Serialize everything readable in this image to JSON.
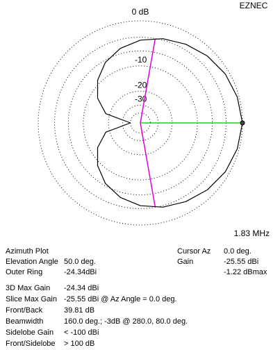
{
  "chart_data": {
    "type": "polar",
    "program": "EZNEC",
    "frequency": "1.83 MHz",
    "scale": "arrl-log",
    "angles": [
      0,
      15,
      30,
      45,
      60,
      75,
      90,
      105,
      120,
      135,
      150,
      165,
      180,
      195,
      210,
      225,
      240,
      255,
      270,
      285,
      300,
      315,
      330,
      345
    ],
    "values": [
      0,
      -0.3,
      -0.7,
      -1.3,
      -2,
      -2.7,
      -3.6,
      -4.8,
      -6.5,
      -9,
      -12.5,
      -18,
      -40,
      -18,
      -12.5,
      -9,
      -6.5,
      -4.8,
      -3.6,
      -2.7,
      -2,
      -1.3,
      -0.7,
      -0.3
    ],
    "color": "#000000",
    "rticks": [
      {
        "value": 0,
        "label": "0 dB"
      },
      -10,
      -20,
      -30
    ],
    "minor_rticks": [
      -3,
      -6,
      -40
    ],
    "cursor_az": 0,
    "cursor_color": "#00c000",
    "beamwidth_angles": [
      80,
      280
    ],
    "beamwidth_level": -3,
    "beamwidth_color": "#e000e0"
  },
  "info": {
    "left": [
      {
        "label": "Azimuth Plot"
      },
      {
        "label": "Elevation Angle",
        "value": "50.0 deg."
      },
      {
        "label": "Outer Ring",
        "value": "-24.34dBi"
      },
      {
        "label": "3D Max Gain",
        "value": "-24.34 dBi"
      },
      {
        "label": "Slice Max Gain",
        "value": "-25.55 dBi @ Az Angle = 0.0 deg."
      },
      {
        "label": "Front/Back",
        "value": "39.81 dB"
      },
      {
        "label": "Beamwidth",
        "value": "160.0 deg.; -3dB @ 280.0, 80.0 deg."
      },
      {
        "label": "Sidelobe Gain",
        "value": "< -100 dBi"
      },
      {
        "label": "Front/Sidelobe",
        "value": "> 100 dB"
      }
    ],
    "right": [
      {
        "label": "Cursor Az",
        "value": "0.0 deg."
      },
      {
        "label": "Gain",
        "value": "-25.55 dBi"
      },
      {
        "value": "-1.22 dBmax"
      }
    ]
  }
}
